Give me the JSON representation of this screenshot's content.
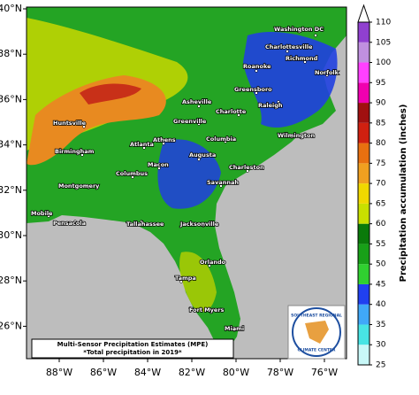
{
  "map": {
    "lon_labels": [
      "88°W",
      "86°W",
      "84°W",
      "82°W",
      "80°W",
      "78°W",
      "76°W"
    ],
    "lat_labels": [
      "40°N",
      "38°N",
      "36°N",
      "34°N",
      "32°N",
      "30°N",
      "28°N",
      "26°N"
    ],
    "cities": [
      "Washington DC",
      "Charlottesville",
      "Richmond",
      "Norfolk",
      "Roanoke",
      "Greensboro",
      "Raleigh",
      "Asheville",
      "Charlotte",
      "Huntsville",
      "Greenville",
      "Wilmington",
      "Atlanta",
      "Athens",
      "Columbia",
      "Birmingham",
      "Augusta",
      "Charleston",
      "Macon",
      "Columbus",
      "Montgomery",
      "Savannah",
      "Tallahassee",
      "Jacksonville",
      "Mobile",
      "Pensacola",
      "Orlando",
      "Tampa",
      "Fort Myers",
      "Miami"
    ],
    "caption": {
      "line1": "Multi-Sensor Precipitation Estimates (MPE)",
      "line2": "*Total precipitation in 2019*"
    },
    "logo": {
      "top": "SOUTHEAST REGIONAL",
      "bottom": "CLIMATE CENTER"
    }
  },
  "colorbar": {
    "label": "Precipitation accumulation (inches)",
    "ticks": [
      25,
      30,
      35,
      40,
      45,
      50,
      55,
      60,
      65,
      70,
      75,
      80,
      85,
      90,
      95,
      100,
      105,
      110
    ],
    "colors": [
      "#c8f8f8",
      "#48e4e4",
      "#40a8f8",
      "#2040f0",
      "#30d030",
      "#18a018",
      "#0a7a0a",
      "#c8e000",
      "#f0d800",
      "#f0a020",
      "#e87010",
      "#d02010",
      "#a01010",
      "#f000b0",
      "#ff40ff",
      "#c090e0",
      "#9040d0"
    ]
  }
}
